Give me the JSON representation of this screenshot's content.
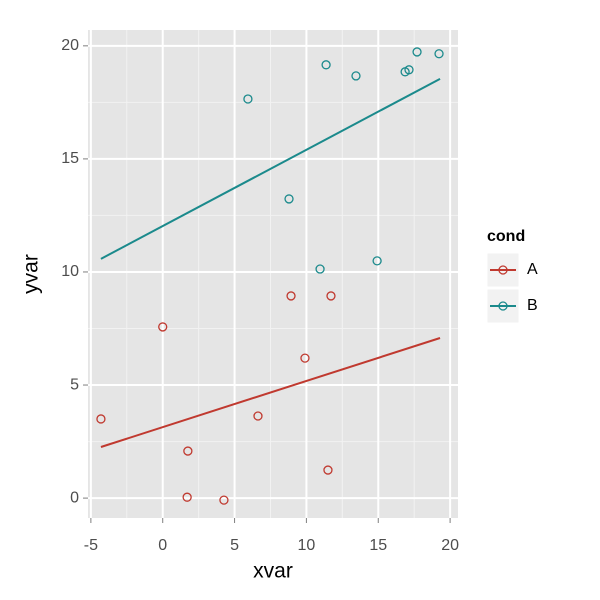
{
  "chart_data": {
    "type": "scatter",
    "x_label": "xvar",
    "y_label": "yvar",
    "legend_title": "cond",
    "xlim": [
      -5.2,
      20.55
    ],
    "ylim": [
      -0.88,
      20.7
    ],
    "xticks": [
      -5,
      0,
      5,
      10,
      15,
      20
    ],
    "yticks": [
      0,
      5,
      10,
      15,
      20
    ],
    "grid": true,
    "legend_position": "right",
    "series": [
      {
        "name": "A",
        "color": "#c0392f",
        "x": [
          -4.3,
          0.0,
          1.75,
          1.7,
          4.26,
          6.63,
          8.93,
          9.9,
          11.71,
          11.5
        ],
        "values": [
          3.5,
          7.57,
          2.08,
          0.04,
          -0.09,
          3.63,
          8.94,
          6.19,
          8.94,
          1.24
        ],
        "fit_x": [
          -4.3,
          19.3
        ],
        "fit_y": [
          2.26,
          7.08
        ]
      },
      {
        "name": "B",
        "color": "#1b8a8c",
        "x": [
          5.93,
          8.79,
          10.95,
          11.37,
          13.45,
          14.92,
          16.87,
          17.14,
          17.7,
          19.23
        ],
        "values": [
          17.65,
          13.23,
          10.13,
          19.16,
          18.67,
          10.49,
          18.85,
          18.94,
          19.73,
          19.65
        ],
        "fit_x": [
          -4.3,
          19.3
        ],
        "fit_y": [
          10.58,
          18.54
        ]
      }
    ]
  }
}
